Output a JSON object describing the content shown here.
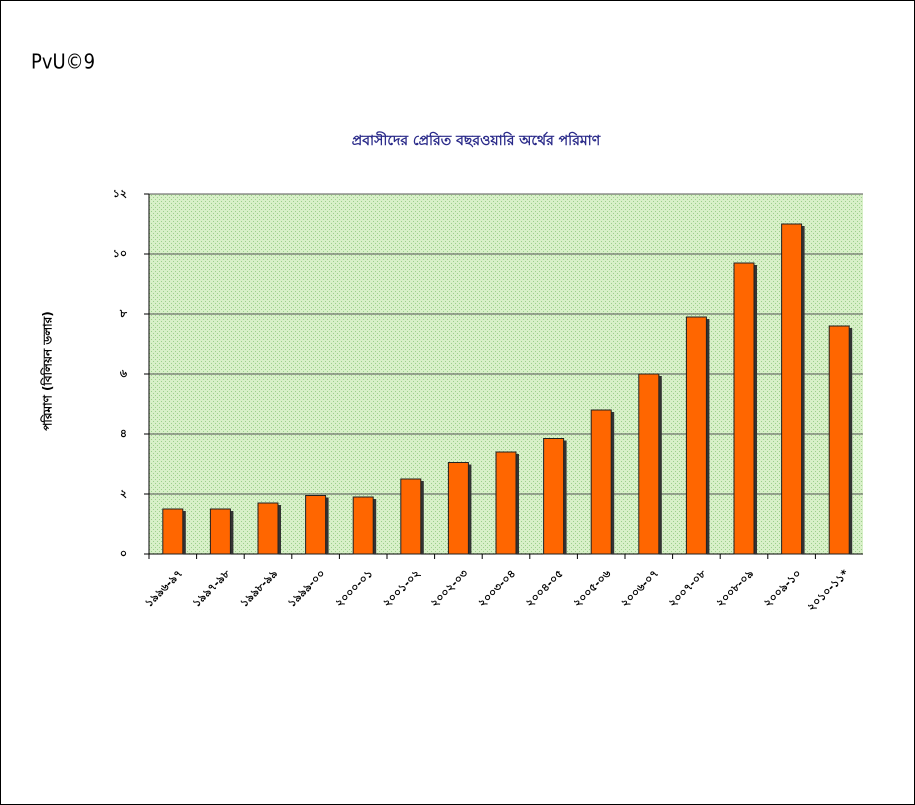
{
  "heading": "PvU©9",
  "chart_data": {
    "type": "bar",
    "title": "প্রবাসীদের প্রেরিত বছরওয়ারি অর্থের পরিমাণ",
    "y_label": "পরিমাণ (বিলিয়ন ডলার)",
    "categories": [
      "১৯৯৬-৯৭",
      "১৯৯৭-৯৮",
      "১৯৯৮-৯৯",
      "১৯৯৯-০০",
      "২০০০-০১",
      "২০০১-০২",
      "২০০২-০৩",
      "২০০৩-০৪",
      "২০০৪-০৫",
      "২০০৫-০৬",
      "২০০৬-০৭",
      "২০০৭-০৮",
      "২০০৮-০৯",
      "২০০৯-১০",
      "২০১০-১১*"
    ],
    "values": [
      1.5,
      1.5,
      1.7,
      1.95,
      1.9,
      2.5,
      3.05,
      3.4,
      3.85,
      4.8,
      6.0,
      7.9,
      9.7,
      11.0,
      7.6
    ],
    "color": "#ff6600",
    "ylim": [
      0,
      12
    ],
    "yticks": [
      {
        "value": 0,
        "label": "০"
      },
      {
        "value": 2,
        "label": "২"
      },
      {
        "value": 4,
        "label": "৪"
      },
      {
        "value": 6,
        "label": "৬"
      },
      {
        "value": 8,
        "label": "৮"
      },
      {
        "value": 10,
        "label": "১০"
      },
      {
        "value": 12,
        "label": "১২"
      }
    ],
    "grid": true
  }
}
